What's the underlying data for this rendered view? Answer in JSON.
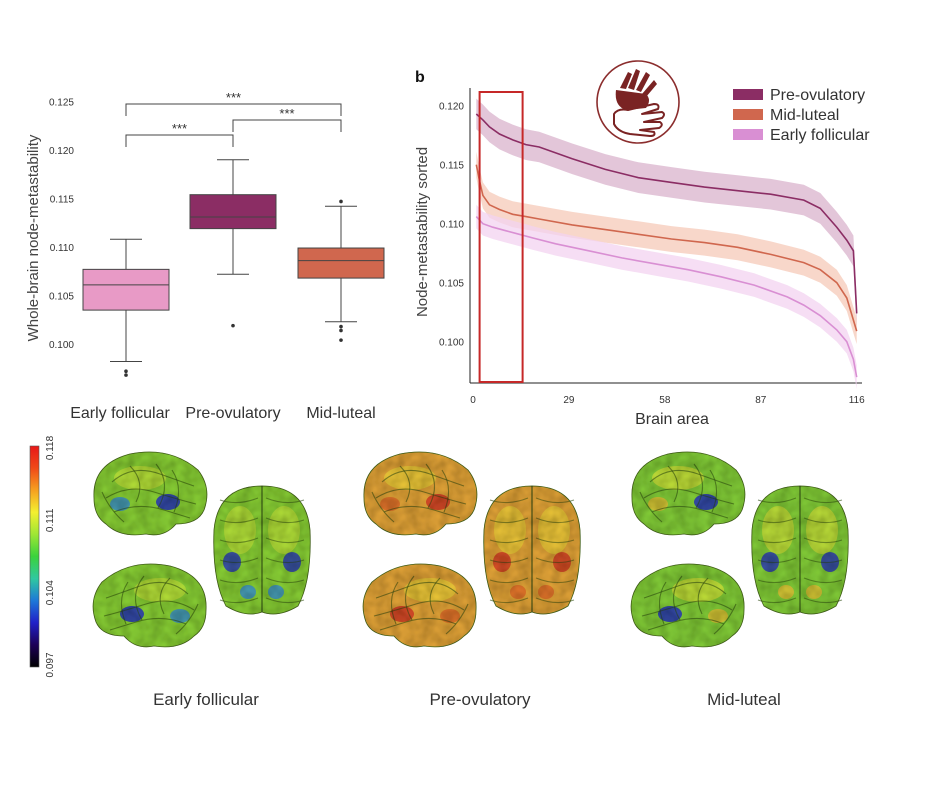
{
  "panel_b_label": "b",
  "chart_data": [
    {
      "type": "box",
      "xlabel": "",
      "ylabel": "Whole-brain node-metastability",
      "ylim": [
        0.0965,
        0.1265
      ],
      "yticks": [
        "0.100",
        "0.105",
        "0.110",
        "0.115",
        "0.120",
        "0.125"
      ],
      "ytick_values": [
        0.1,
        0.105,
        0.11,
        0.115,
        0.12,
        0.125
      ],
      "categories": [
        "Early follicular",
        "Pre-ovulatory",
        "Mid-luteal"
      ],
      "colors": [
        "#e89ac6",
        "#8b2d64",
        "#d0674e"
      ],
      "boxes": [
        {
          "whisker_low": 0.0982,
          "q1": 0.1035,
          "median": 0.1061,
          "q3": 0.1077,
          "whisker_high": 0.1108,
          "outliers": [
            0.0968,
            0.0972
          ]
        },
        {
          "whisker_low": 0.1072,
          "q1": 0.1119,
          "median": 0.1131,
          "q3": 0.1154,
          "whisker_high": 0.119,
          "outliers": [
            0.1019
          ]
        },
        {
          "whisker_low": 0.1023,
          "q1": 0.1068,
          "median": 0.1086,
          "q3": 0.1099,
          "whisker_high": 0.1142,
          "outliers": [
            0.1147,
            0.1018,
            0.1014,
            0.1004
          ]
        }
      ],
      "significance": [
        {
          "from": 0,
          "to": 2,
          "label": "***"
        },
        {
          "from": 0,
          "to": 1,
          "label": "***"
        },
        {
          "from": 1,
          "to": 2,
          "label": "***"
        }
      ]
    },
    {
      "type": "line",
      "xlabel": "Brain area",
      "ylabel": "Node-metastability sorted",
      "xlim": [
        0,
        117
      ],
      "ylim": [
        0.0965,
        0.1215
      ],
      "xticks": [
        0,
        29,
        58,
        87,
        116
      ],
      "xtick_labels": [
        "0",
        "29",
        "58",
        "87",
        "116"
      ],
      "yticks": [
        "0.100",
        "0.105",
        "0.110",
        "0.115",
        "0.120"
      ],
      "ytick_values": [
        0.1,
        0.105,
        0.11,
        0.115,
        0.12
      ],
      "legend_position": "top-right",
      "highlight_box": {
        "x_from": 2,
        "x_to": 15,
        "color": "#c62828"
      },
      "series": [
        {
          "name": "Pre-ovulatory",
          "color": "#8b2d64",
          "band_color": "#d9b3cc",
          "band_halfwidth": 0.0013,
          "x": [
            1,
            3,
            5,
            8,
            12,
            16,
            20,
            30,
            40,
            50,
            60,
            70,
            80,
            90,
            100,
            105,
            110,
            113,
            115,
            116
          ],
          "y": [
            0.1193,
            0.1188,
            0.1182,
            0.1176,
            0.1171,
            0.1167,
            0.1165,
            0.1155,
            0.1146,
            0.1139,
            0.1135,
            0.1131,
            0.1128,
            0.1125,
            0.112,
            0.1113,
            0.1097,
            0.1086,
            0.1077,
            0.1024
          ]
        },
        {
          "name": "Mid-luteal",
          "color": "#d0674e",
          "band_color": "#f5c9b8",
          "band_halfwidth": 0.0011,
          "x": [
            1,
            2,
            3,
            5,
            8,
            12,
            16,
            20,
            30,
            40,
            50,
            60,
            70,
            80,
            90,
            100,
            105,
            110,
            113,
            116
          ],
          "y": [
            0.115,
            0.1136,
            0.1124,
            0.1116,
            0.1112,
            0.1108,
            0.1106,
            0.1104,
            0.1099,
            0.1095,
            0.1091,
            0.1087,
            0.1084,
            0.108,
            0.1074,
            0.1067,
            0.1061,
            0.105,
            0.1037,
            0.1009
          ]
        },
        {
          "name": "Early follicular",
          "color": "#d98fd3",
          "band_color": "#f3d3f0",
          "band_halfwidth": 0.001,
          "x": [
            1,
            3,
            6,
            10,
            14,
            18,
            25,
            35,
            45,
            55,
            65,
            75,
            85,
            95,
            100,
            105,
            110,
            113,
            115,
            116
          ],
          "y": [
            0.1106,
            0.11,
            0.1097,
            0.1094,
            0.1091,
            0.1088,
            0.1083,
            0.1077,
            0.1071,
            0.1066,
            0.1061,
            0.1055,
            0.1048,
            0.1038,
            0.1031,
            0.1022,
            0.101,
            0.1,
            0.0985,
            0.097
          ]
        }
      ]
    }
  ],
  "colorbar": {
    "ticks": [
      "0.118",
      "0.111",
      "0.104",
      "0.097"
    ],
    "tick_values": [
      0.118,
      0.111,
      0.104,
      0.097
    ],
    "colormap": [
      "#000000",
      "#1d0057",
      "#2020c8",
      "#1e78d8",
      "#30c8a0",
      "#3ad23c",
      "#9ee634",
      "#f4f030",
      "#f6a020",
      "#f04a18",
      "#e81818"
    ]
  },
  "brain_panels": [
    {
      "label": "Early follicular",
      "base": "#8cd437",
      "hi": "#c9ea3d",
      "patch": "#2f3fb8",
      "patch2": "#3a8fd6"
    },
    {
      "label": "Pre-ovulatory",
      "base": "#e8a83a",
      "hi": "#f3d93c",
      "patch": "#d8422a",
      "patch2": "#e46a2a"
    },
    {
      "label": "Mid-luteal",
      "base": "#86d23a",
      "hi": "#dbe83c",
      "patch": "#2f3fb8",
      "patch2": "#e8c43a"
    }
  ]
}
